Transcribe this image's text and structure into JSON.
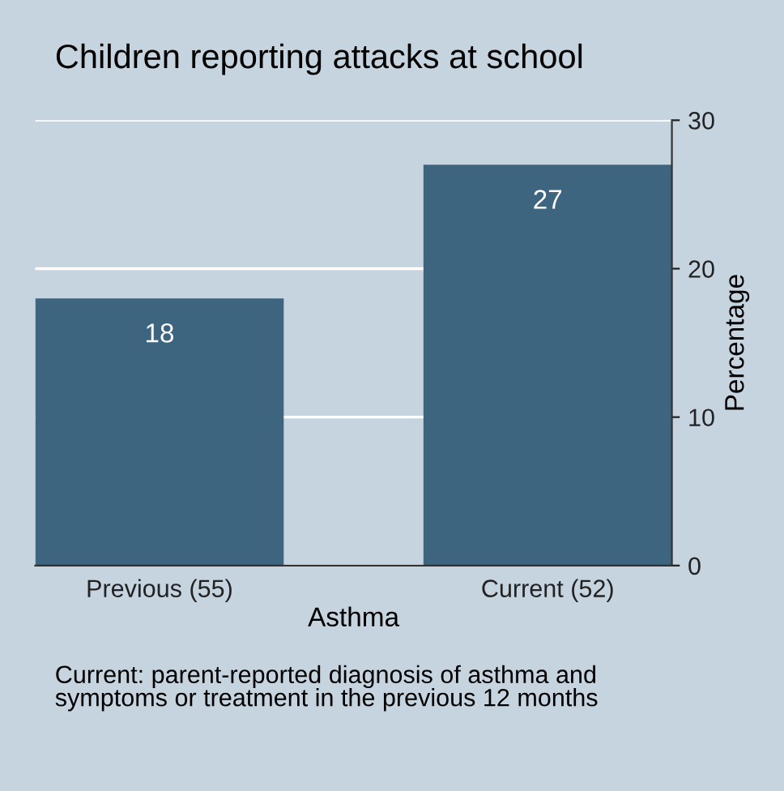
{
  "chart_data": {
    "type": "bar",
    "title": "Children reporting attacks at school",
    "xlabel": "Asthma",
    "ylabel": "Percentage",
    "categories": [
      "Previous (55)",
      "Current (52)"
    ],
    "series": [
      {
        "color": "#3e6580",
        "values": [
          18,
          27
        ]
      }
    ],
    "ylim": [
      0,
      30
    ],
    "yticks": [
      0,
      10,
      20,
      30
    ],
    "grid": "y",
    "data_labels": true,
    "legend": false,
    "annotations": [
      "Current: parent-reported diagnosis of asthma and\nsymptoms or treatment in the previous 12 months"
    ]
  }
}
